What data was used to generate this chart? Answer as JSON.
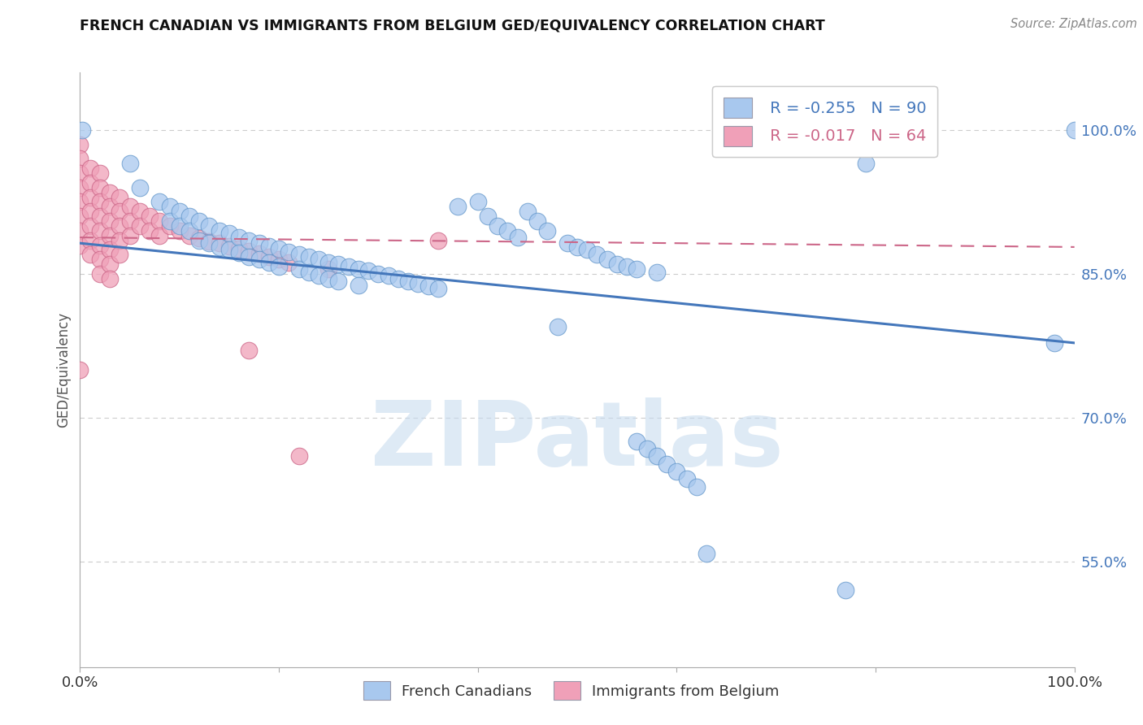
{
  "title": "FRENCH CANADIAN VS IMMIGRANTS FROM BELGIUM GED/EQUIVALENCY CORRELATION CHART",
  "source": "Source: ZipAtlas.com",
  "ylabel": "GED/Equivalency",
  "watermark": "ZIPatlas",
  "xlim": [
    0.0,
    1.0
  ],
  "ylim": [
    0.44,
    1.06
  ],
  "ytick_positions": [
    1.0,
    0.85,
    0.7,
    0.55
  ],
  "ytick_labels": [
    "100.0%",
    "85.0%",
    "70.0%",
    "55.0%"
  ],
  "blue_color": "#A8C8EE",
  "pink_color": "#F0A0B8",
  "blue_edge_color": "#6699CC",
  "pink_edge_color": "#CC6688",
  "blue_line_color": "#4477BB",
  "pink_line_color": "#CC6688",
  "R_blue": -0.255,
  "N_blue": 90,
  "R_pink": -0.017,
  "N_pink": 64,
  "legend_label_blue": "French Canadians",
  "legend_label_pink": "Immigrants from Belgium",
  "blue_trend_x": [
    0.0,
    1.0
  ],
  "blue_trend_y": [
    0.882,
    0.778
  ],
  "pink_trend_x": [
    0.0,
    1.0
  ],
  "pink_trend_y": [
    0.888,
    0.878
  ],
  "blue_scatter": [
    [
      0.002,
      1.0
    ],
    [
      0.05,
      0.965
    ],
    [
      0.06,
      0.94
    ],
    [
      0.08,
      0.925
    ],
    [
      0.09,
      0.92
    ],
    [
      0.09,
      0.905
    ],
    [
      0.1,
      0.915
    ],
    [
      0.1,
      0.9
    ],
    [
      0.11,
      0.91
    ],
    [
      0.11,
      0.895
    ],
    [
      0.12,
      0.905
    ],
    [
      0.12,
      0.885
    ],
    [
      0.13,
      0.9
    ],
    [
      0.13,
      0.882
    ],
    [
      0.14,
      0.895
    ],
    [
      0.14,
      0.878
    ],
    [
      0.15,
      0.892
    ],
    [
      0.15,
      0.875
    ],
    [
      0.16,
      0.888
    ],
    [
      0.16,
      0.872
    ],
    [
      0.17,
      0.885
    ],
    [
      0.17,
      0.868
    ],
    [
      0.18,
      0.882
    ],
    [
      0.18,
      0.865
    ],
    [
      0.19,
      0.879
    ],
    [
      0.19,
      0.862
    ],
    [
      0.2,
      0.876
    ],
    [
      0.2,
      0.858
    ],
    [
      0.21,
      0.873
    ],
    [
      0.22,
      0.87
    ],
    [
      0.22,
      0.855
    ],
    [
      0.23,
      0.868
    ],
    [
      0.23,
      0.852
    ],
    [
      0.24,
      0.865
    ],
    [
      0.24,
      0.848
    ],
    [
      0.25,
      0.862
    ],
    [
      0.25,
      0.845
    ],
    [
      0.26,
      0.86
    ],
    [
      0.26,
      0.842
    ],
    [
      0.27,
      0.858
    ],
    [
      0.28,
      0.855
    ],
    [
      0.28,
      0.838
    ],
    [
      0.29,
      0.853
    ],
    [
      0.3,
      0.85
    ],
    [
      0.31,
      0.848
    ],
    [
      0.32,
      0.845
    ],
    [
      0.33,
      0.842
    ],
    [
      0.34,
      0.84
    ],
    [
      0.35,
      0.837
    ],
    [
      0.36,
      0.835
    ],
    [
      0.38,
      0.92
    ],
    [
      0.4,
      0.925
    ],
    [
      0.41,
      0.91
    ],
    [
      0.42,
      0.9
    ],
    [
      0.43,
      0.895
    ],
    [
      0.44,
      0.888
    ],
    [
      0.45,
      0.915
    ],
    [
      0.46,
      0.905
    ],
    [
      0.47,
      0.895
    ],
    [
      0.49,
      0.882
    ],
    [
      0.5,
      0.878
    ],
    [
      0.51,
      0.875
    ],
    [
      0.52,
      0.87
    ],
    [
      0.53,
      0.865
    ],
    [
      0.54,
      0.86
    ],
    [
      0.55,
      0.858
    ],
    [
      0.56,
      0.855
    ],
    [
      0.58,
      0.852
    ],
    [
      0.48,
      0.795
    ],
    [
      0.56,
      0.675
    ],
    [
      0.57,
      0.668
    ],
    [
      0.58,
      0.66
    ],
    [
      0.59,
      0.652
    ],
    [
      0.6,
      0.644
    ],
    [
      0.61,
      0.636
    ],
    [
      0.62,
      0.628
    ],
    [
      0.63,
      0.558
    ],
    [
      0.77,
      0.52
    ],
    [
      0.79,
      0.965
    ],
    [
      0.98,
      0.778
    ],
    [
      1.0,
      1.0
    ]
  ],
  "pink_scatter": [
    [
      0.0,
      0.985
    ],
    [
      0.0,
      0.97
    ],
    [
      0.0,
      0.955
    ],
    [
      0.0,
      0.94
    ],
    [
      0.0,
      0.925
    ],
    [
      0.0,
      0.91
    ],
    [
      0.0,
      0.895
    ],
    [
      0.0,
      0.88
    ],
    [
      0.01,
      0.96
    ],
    [
      0.01,
      0.945
    ],
    [
      0.01,
      0.93
    ],
    [
      0.01,
      0.915
    ],
    [
      0.01,
      0.9
    ],
    [
      0.01,
      0.885
    ],
    [
      0.01,
      0.87
    ],
    [
      0.02,
      0.955
    ],
    [
      0.02,
      0.94
    ],
    [
      0.02,
      0.925
    ],
    [
      0.02,
      0.91
    ],
    [
      0.02,
      0.895
    ],
    [
      0.02,
      0.88
    ],
    [
      0.02,
      0.865
    ],
    [
      0.02,
      0.85
    ],
    [
      0.03,
      0.935
    ],
    [
      0.03,
      0.92
    ],
    [
      0.03,
      0.905
    ],
    [
      0.03,
      0.89
    ],
    [
      0.03,
      0.875
    ],
    [
      0.03,
      0.86
    ],
    [
      0.03,
      0.845
    ],
    [
      0.04,
      0.93
    ],
    [
      0.04,
      0.915
    ],
    [
      0.04,
      0.9
    ],
    [
      0.04,
      0.885
    ],
    [
      0.04,
      0.87
    ],
    [
      0.05,
      0.92
    ],
    [
      0.05,
      0.905
    ],
    [
      0.05,
      0.89
    ],
    [
      0.06,
      0.915
    ],
    [
      0.06,
      0.9
    ],
    [
      0.07,
      0.91
    ],
    [
      0.07,
      0.895
    ],
    [
      0.08,
      0.905
    ],
    [
      0.08,
      0.89
    ],
    [
      0.09,
      0.9
    ],
    [
      0.1,
      0.895
    ],
    [
      0.11,
      0.89
    ],
    [
      0.12,
      0.887
    ],
    [
      0.13,
      0.884
    ],
    [
      0.14,
      0.882
    ],
    [
      0.15,
      0.879
    ],
    [
      0.16,
      0.876
    ],
    [
      0.17,
      0.874
    ],
    [
      0.17,
      0.77
    ],
    [
      0.18,
      0.871
    ],
    [
      0.19,
      0.868
    ],
    [
      0.2,
      0.865
    ],
    [
      0.21,
      0.862
    ],
    [
      0.22,
      0.66
    ],
    [
      0.25,
      0.855
    ],
    [
      0.36,
      0.885
    ],
    [
      0.0,
      0.75
    ]
  ],
  "grid_color": "#CCCCCC",
  "background_color": "#FFFFFF"
}
